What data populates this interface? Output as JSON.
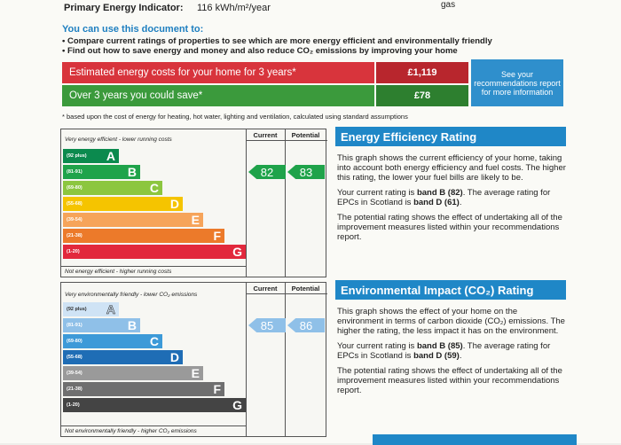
{
  "header": {
    "label": "Primary Energy Indicator:",
    "value": "116 kWh/m²/year",
    "fuel": "gas"
  },
  "intro": {
    "title": "You can use this document to:",
    "bullets": [
      "Compare current ratings of properties to see which are more energy efficient and environmentally friendly",
      "Find out how to save energy and money and also reduce CO₂ emissions by improving your home"
    ]
  },
  "costs": {
    "rows": [
      {
        "label": "Estimated energy costs for your home for 3 years*",
        "value": "£1,119",
        "color": "#d8343c",
        "value_color": "#b8262d"
      },
      {
        "label": "Over 3 years you could save*",
        "value": "£78",
        "color": "#3b9a3c",
        "value_color": "#2d7f2f"
      }
    ],
    "note": "See your recommendations report for more information",
    "note_color": "#2f8fcc",
    "footnote": "* based upon the cost of energy for heating, hot water, lighting and ventilation, calculated using standard assumptions"
  },
  "ratings": [
    {
      "top_label": "Very energy efficient - lower running costs",
      "bottom_label": "Not energy efficient - higher running costs",
      "columns": [
        "Current",
        "Potential"
      ],
      "bands": [
        {
          "range": "(92 plus)",
          "letter": "A",
          "color": "#0b8a4e"
        },
        {
          "range": "(81-91)",
          "letter": "B",
          "color": "#1fa34a"
        },
        {
          "range": "(69-80)",
          "letter": "C",
          "color": "#8cc63f"
        },
        {
          "range": "(55-68)",
          "letter": "D",
          "color": "#f5c400"
        },
        {
          "range": "(39-54)",
          "letter": "E",
          "color": "#f6a45a"
        },
        {
          "range": "(21-38)",
          "letter": "F",
          "color": "#ec7a2a"
        },
        {
          "range": "(1-20)",
          "letter": "G",
          "color": "#e2283c"
        }
      ],
      "current": 82,
      "potential": 83,
      "arrow_color": "#1fa34a",
      "panel": {
        "title": "Energy Efficiency Rating",
        "paragraphs": [
          [
            {
              "text": "This graph shows the current efficiency of your home, taking into account both energy efficiency and fuel costs. The higher this rating, the lower your fuel bills are likely to be."
            }
          ],
          [
            {
              "text": "Your current rating is "
            },
            {
              "text": "band B (82)",
              "bold": true
            },
            {
              "text": ". The average rating for EPCs in Scotland is "
            },
            {
              "text": "band D (61)",
              "bold": true
            },
            {
              "text": "."
            }
          ],
          [
            {
              "text": "The potential rating shows the effect of undertaking all of the improvement measures listed within your recommendations report."
            }
          ]
        ]
      }
    },
    {
      "top_label": "Very environmentally friendly - lower CO₂ emissions",
      "bottom_label": "Not environmentally friendly - higher CO₂ emissions",
      "columns": [
        "Current",
        "Potential"
      ],
      "bands": [
        {
          "range": "(92 plus)",
          "letter": "A",
          "color": "#cfe3f5"
        },
        {
          "range": "(81-91)",
          "letter": "B",
          "color": "#8fc0e8"
        },
        {
          "range": "(69-80)",
          "letter": "C",
          "color": "#3d9ad8"
        },
        {
          "range": "(55-68)",
          "letter": "D",
          "color": "#1f6db5"
        },
        {
          "range": "(39-54)",
          "letter": "E",
          "color": "#9a9a9a"
        },
        {
          "range": "(21-38)",
          "letter": "F",
          "color": "#6f6f6f"
        },
        {
          "range": "(1-20)",
          "letter": "G",
          "color": "#444444"
        }
      ],
      "current": 85,
      "potential": 86,
      "arrow_color": "#8fc0e8",
      "panel": {
        "title": "Environmental Impact (CO₂) Rating",
        "paragraphs": [
          [
            {
              "text": "This graph shows the effect of your home on the environment in terms of carbon dioxide (CO₂) emissions. The higher the rating, the less impact it has on the environment."
            }
          ],
          [
            {
              "text": "Your current rating is "
            },
            {
              "text": "band B (85)",
              "bold": true
            },
            {
              "text": ". The average rating for EPCs in Scotland is "
            },
            {
              "text": "band D (59)",
              "bold": true
            },
            {
              "text": "."
            }
          ],
          [
            {
              "text": "The potential rating shows the effect of undertaking all of the improvement measures listed within your recommendations report."
            }
          ]
        ]
      }
    }
  ]
}
